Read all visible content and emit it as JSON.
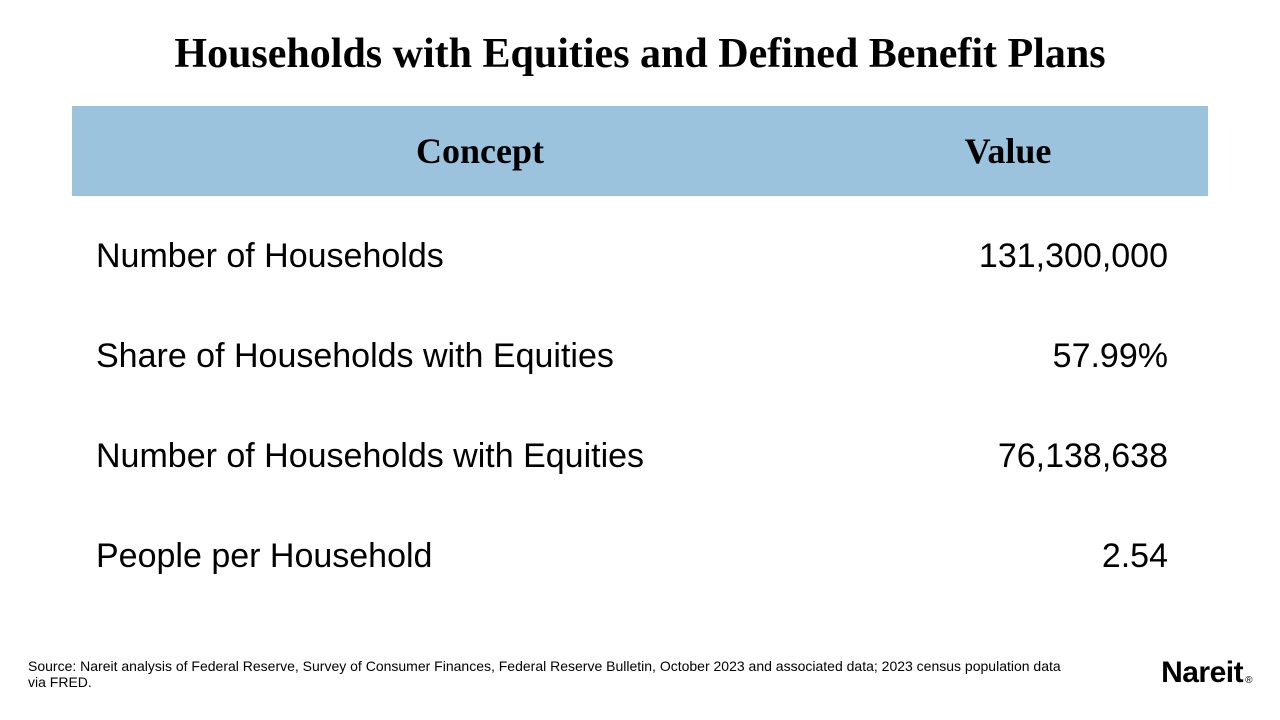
{
  "title": "Households with Equities and Defined Benefit Plans",
  "table": {
    "header_bg": "#9cc3de",
    "columns": {
      "concept": "Concept",
      "value": "Value"
    },
    "rows": [
      {
        "concept": "Number of Households",
        "value": "131,300,000"
      },
      {
        "concept": "Share of Households with Equities",
        "value": "57.99%"
      },
      {
        "concept": "Number of Households with Equities",
        "value": "76,138,638"
      },
      {
        "concept": "People per Household",
        "value": "2.54"
      }
    ]
  },
  "source": "Source: Nareit analysis of Federal Reserve, Survey of Consumer Finances, Federal Reserve Bulletin, October 2023 and associated data; 2023 census population data via FRED.",
  "logo": {
    "text": "Nareit",
    "reg": "®"
  },
  "style": {
    "title_fontsize": 42,
    "header_fontsize": 36,
    "row_fontsize": 34,
    "source_fontsize": 14,
    "bg_color": "#ffffff",
    "text_color": "#000000"
  }
}
